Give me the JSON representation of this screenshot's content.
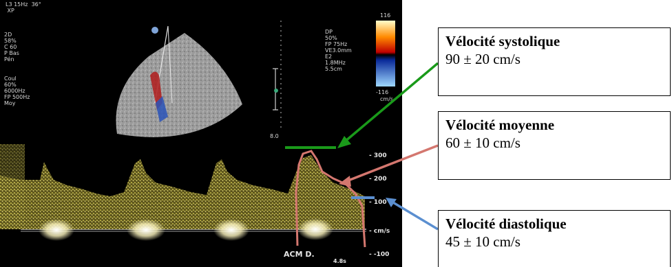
{
  "scan": {
    "header_text": "L3 15Hz  36°\n XP",
    "mode_2d": "2D\n58%\nC 60\nP Bas\nPén",
    "mode_coul": "Coul\n60%\n6000Hz\nFP 500Hz\nMoy",
    "mode_dp": "DP\n50%\nFP 75Hz\nVE3.0mm\nE2\n1.8MHz\n5.5cm",
    "scale_top": "116",
    "scale_bottom": "-116",
    "scale_unit": "cm/s",
    "depth_label": "8.0",
    "vessel_label": "ACM D.",
    "time_label": "4.8s",
    "velocity_ticks": [
      "- 300",
      "- 200",
      "- 100",
      "- cm/s",
      "- -100"
    ]
  },
  "labels": {
    "systolic": {
      "title": "Vélocité systolique",
      "value": "90 ± 20 cm/s",
      "color": "#1a9a1a"
    },
    "mean": {
      "title": "Vélocité moyenne",
      "value": "60 ± 10 cm/s",
      "color": "#d4776f"
    },
    "diastolic": {
      "title": "Vélocité diastolique",
      "value": "45 ± 10 cm/s",
      "color": "#5b8fd0"
    }
  }
}
